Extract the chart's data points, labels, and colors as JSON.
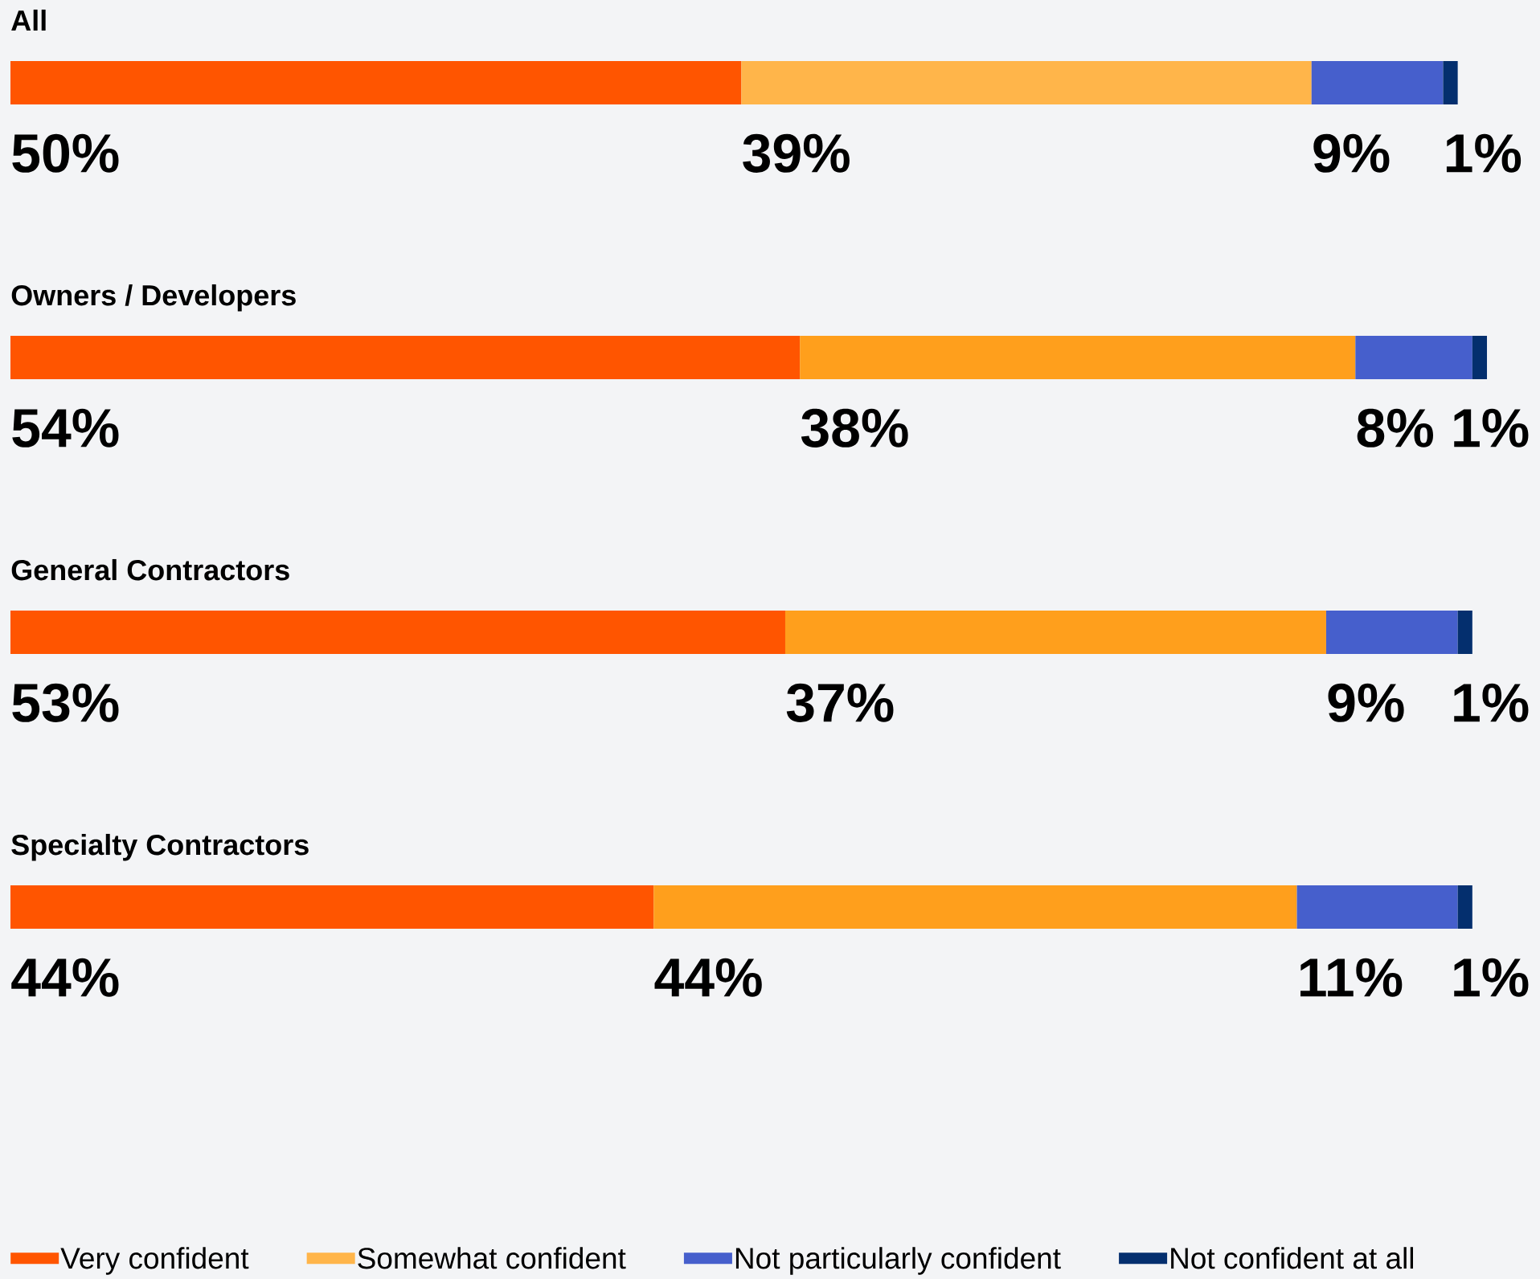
{
  "chart_data": {
    "type": "bar",
    "orientation": "horizontal",
    "stacked": true,
    "categories": [
      "All",
      "Owners / Developers",
      "General Contractors",
      "Specialty Contractors"
    ],
    "series": [
      {
        "name": "Very confident",
        "color": "#ff5500",
        "values": [
          50,
          54,
          53,
          44
        ],
        "value_labels": [
          "50%",
          "54%",
          "53%",
          "44%"
        ]
      },
      {
        "name": "Somewhat confident",
        "color": "#ffb54a",
        "colors": [
          "#ffb54a",
          "#ff9f1c",
          "#ff9f1c",
          "#ff9f1c"
        ],
        "values": [
          39,
          38,
          37,
          44
        ],
        "value_labels": [
          "39%",
          "38%",
          "37%",
          "44%"
        ]
      },
      {
        "name": "Not particularly confident",
        "color": "#465fcc",
        "values": [
          9,
          8,
          9,
          11
        ],
        "value_labels": [
          "9%",
          "8%",
          "9%",
          "11%"
        ]
      },
      {
        "name": "Not confident at all",
        "color": "#042f6e",
        "values": [
          1,
          1,
          1,
          1
        ],
        "value_labels": [
          "1%",
          "1%",
          "1%",
          "1%"
        ]
      }
    ],
    "legend": "bottom"
  }
}
